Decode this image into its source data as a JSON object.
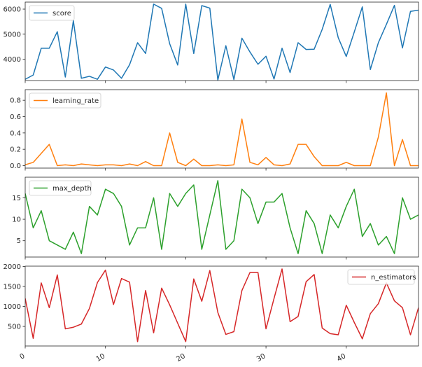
{
  "chart_data": {
    "type": "line",
    "layout": "4 stacked subplots sharing x axis",
    "grid": false,
    "x": [
      0,
      1,
      2,
      3,
      4,
      5,
      6,
      7,
      8,
      9,
      10,
      11,
      12,
      13,
      14,
      15,
      16,
      17,
      18,
      19,
      20,
      21,
      22,
      23,
      24,
      25,
      26,
      27,
      28,
      29,
      30,
      31,
      32,
      33,
      34,
      35,
      36,
      37,
      38,
      39,
      40,
      41,
      42,
      43,
      44,
      45,
      46,
      47,
      48,
      49
    ],
    "xlim": [
      0,
      49
    ],
    "xticks": [
      0,
      10,
      20,
      30,
      40
    ],
    "xtick_labels": [
      "0",
      "10",
      "20",
      "30",
      "40"
    ],
    "xlabel": "",
    "subplots": [
      {
        "name": "score",
        "color": "#1f77b4",
        "legend_loc": "upper left",
        "ylim": [
          3150,
          6280
        ],
        "yticks": [
          4000,
          5000,
          6000
        ],
        "ytick_labels": [
          "4000",
          "5000",
          "6000"
        ],
        "values": [
          3200,
          3370,
          4440,
          4440,
          5100,
          3290,
          5540,
          3240,
          3320,
          3200,
          3690,
          3570,
          3240,
          3780,
          4660,
          4230,
          6200,
          6030,
          4620,
          3770,
          6200,
          4230,
          6140,
          6040,
          3170,
          4540,
          3190,
          4840,
          4290,
          3800,
          4120,
          3210,
          4440,
          3470,
          4660,
          4390,
          4400,
          5190,
          6190,
          4860,
          4110,
          5090,
          6090,
          3590,
          4660,
          5390,
          6150,
          4450,
          5910,
          5960
        ]
      },
      {
        "name": "learning_rate",
        "color": "#ff7f0e",
        "legend_loc": "upper left",
        "ylim": [
          -0.03,
          0.93
        ],
        "yticks": [
          0.0,
          0.2,
          0.4,
          0.6,
          0.8
        ],
        "ytick_labels": [
          "0.0",
          "0.2",
          "0.4",
          "0.6",
          "0.8"
        ],
        "values": [
          0.01,
          0.04,
          0.15,
          0.26,
          0.0,
          0.01,
          0.0,
          0.02,
          0.01,
          0.0,
          0.01,
          0.01,
          0.0,
          0.02,
          0.0,
          0.05,
          0.0,
          0.0,
          0.4,
          0.04,
          0.0,
          0.08,
          0.0,
          0.0,
          0.01,
          0.0,
          0.01,
          0.57,
          0.04,
          0.01,
          0.1,
          0.01,
          0.0,
          0.02,
          0.26,
          0.26,
          0.11,
          0.0,
          0.0,
          0.0,
          0.04,
          0.0,
          0.0,
          0.0,
          0.35,
          0.89,
          0.0,
          0.32,
          0.0,
          0.0
        ]
      },
      {
        "name": "max_depth",
        "color": "#2ca02c",
        "legend_loc": "upper left",
        "ylim": [
          1.2,
          19.8
        ],
        "yticks": [
          5,
          10,
          15
        ],
        "ytick_labels": [
          "5",
          "10",
          "15"
        ],
        "values": [
          16,
          8,
          12,
          5,
          4,
          3,
          7,
          2,
          13,
          11,
          17,
          16,
          13,
          4,
          8,
          8,
          15,
          3,
          16,
          13,
          16,
          18,
          3,
          11,
          19,
          3,
          5,
          17,
          15,
          9,
          14,
          14,
          16,
          8,
          2,
          12,
          9,
          2,
          11,
          8,
          13,
          17,
          6,
          9,
          4,
          6,
          2,
          15,
          10,
          11
        ]
      },
      {
        "name": "n_estimators",
        "color": "#d62728",
        "legend_loc": "upper right",
        "ylim": [
          10,
          2010
        ],
        "yticks": [
          500,
          1000,
          1500,
          2000
        ],
        "ytick_labels": [
          "500",
          "1000",
          "1500",
          "2000"
        ],
        "values": [
          1200,
          200,
          1590,
          970,
          1790,
          440,
          480,
          560,
          950,
          1600,
          1910,
          1050,
          1700,
          1610,
          120,
          1400,
          340,
          1460,
          1040,
          580,
          120,
          1690,
          1130,
          1900,
          850,
          300,
          370,
          1400,
          1850,
          1850,
          440,
          1200,
          1940,
          620,
          750,
          1620,
          1800,
          460,
          320,
          290,
          1030,
          600,
          190,
          820,
          1070,
          1590,
          1140,
          970,
          290,
          970
        ]
      }
    ]
  }
}
